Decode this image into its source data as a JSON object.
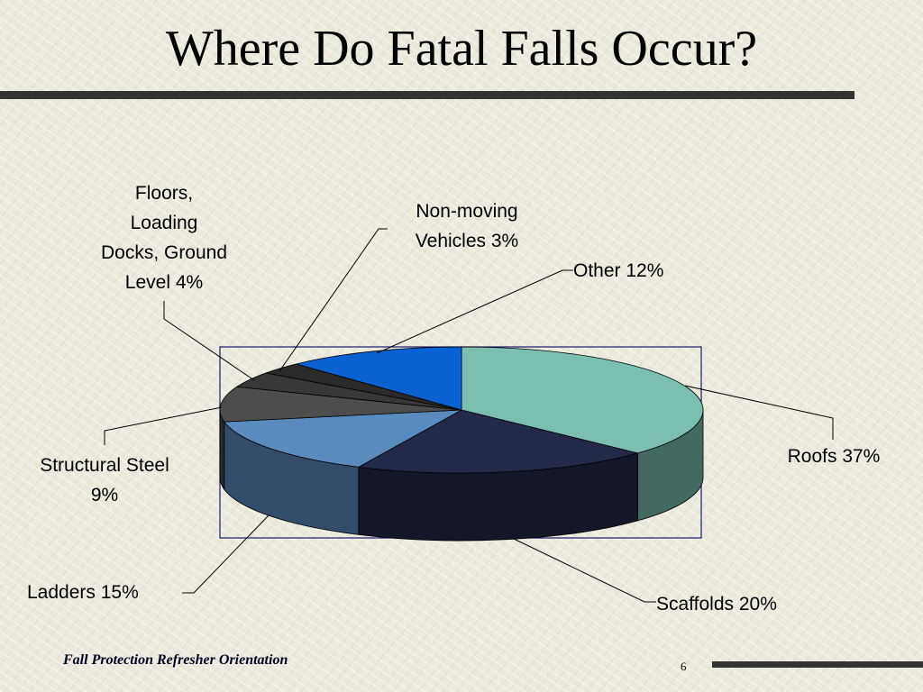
{
  "slide": {
    "title": "Where Do Fatal Falls Occur?",
    "footer": "Fall Protection Refresher Orientation",
    "page_number": "6"
  },
  "chart_data": {
    "type": "pie",
    "style": "3d",
    "title": "",
    "slices": [
      {
        "label": "Roofs 37%",
        "category": "Roofs",
        "value": 37,
        "color": "#7bbfb1"
      },
      {
        "label": "Scaffolds 20%",
        "category": "Scaffolds",
        "value": 20,
        "color": "#222a48"
      },
      {
        "label": "Ladders 15%",
        "category": "Ladders",
        "value": 15,
        "color": "#5a8bbe"
      },
      {
        "label": "Structural Steel\n9%",
        "category": "Structural Steel",
        "value": 9,
        "color": "#4d4d4d"
      },
      {
        "label": "Floors,\nLoading\nDocks, Ground\nLevel 4%",
        "category": "Floors, Loading Docks, Ground Level",
        "value": 4,
        "color": "#383838"
      },
      {
        "label": "Non-moving\nVehicles 3%",
        "category": "Non-moving Vehicles",
        "value": 3,
        "color": "#2a2a2a"
      },
      {
        "label": "Other 12%",
        "category": "Other",
        "value": 12,
        "color": "#0a62d2"
      }
    ]
  }
}
